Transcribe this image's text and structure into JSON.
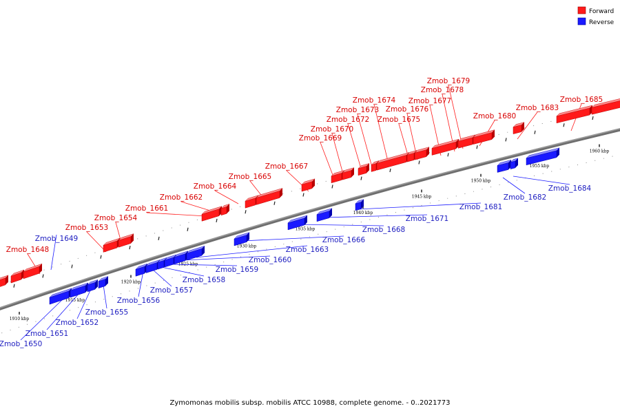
{
  "caption": "Zymomonas mobilis subsp. mobilis ATCC 10988, complete genome. - 0..2021773",
  "legend": [
    {
      "label": "Forward",
      "color": "#ff1a1a"
    },
    {
      "label": "Reverse",
      "color": "#1a1aff"
    }
  ],
  "colors": {
    "forward": "#ff1a1a",
    "forward_top": "#ff8a8a",
    "forward_dark": "#b80000",
    "forward_label": "#d80000",
    "reverse": "#1a1aff",
    "reverse_top": "#8a8aff",
    "reverse_dark": "#0000b0",
    "reverse_label": "#1c1cc0"
  },
  "scale": {
    "kbp_labels": [
      "1910 kbp",
      "1915 kbp",
      "1920 kbp",
      "1925 kbp",
      "1930 kbp",
      "1935 kbp",
      "1940 kbp",
      "1945 kbp",
      "1950 kbp",
      "1955 kbp",
      "1960 kbp"
    ]
  },
  "genes_forward": [
    {
      "label": "Zmob_1648"
    },
    {
      "label": "Zmob_1653"
    },
    {
      "label": "Zmob_1654"
    },
    {
      "label": "Zmob_1661"
    },
    {
      "label": "Zmob_1662"
    },
    {
      "label": "Zmob_1664"
    },
    {
      "label": "Zmob_1665"
    },
    {
      "label": "Zmob_1667"
    },
    {
      "label": "Zmob_1669"
    },
    {
      "label": "Zmob_1670"
    },
    {
      "label": "Zmob_1672"
    },
    {
      "label": "Zmob_1673"
    },
    {
      "label": "Zmob_1674"
    },
    {
      "label": "Zmob_1675"
    },
    {
      "label": "Zmob_1676"
    },
    {
      "label": "Zmob_1677"
    },
    {
      "label": "Zmob_1678"
    },
    {
      "label": "Zmob_1679"
    },
    {
      "label": "Zmob_1680"
    },
    {
      "label": "Zmob_1683"
    },
    {
      "label": "Zmob_1685"
    }
  ],
  "genes_reverse": [
    {
      "label": "Zmob_1649"
    },
    {
      "label": "Zmob_1650"
    },
    {
      "label": "Zmob_1651"
    },
    {
      "label": "Zmob_1652"
    },
    {
      "label": "Zmob_1655"
    },
    {
      "label": "Zmob_1656"
    },
    {
      "label": "Zmob_1657"
    },
    {
      "label": "Zmob_1658"
    },
    {
      "label": "Zmob_1659"
    },
    {
      "label": "Zmob_1660"
    },
    {
      "label": "Zmob_1663"
    },
    {
      "label": "Zmob_1666"
    },
    {
      "label": "Zmob_1668"
    },
    {
      "label": "Zmob_1671"
    },
    {
      "label": "Zmob_1681"
    },
    {
      "label": "Zmob_1682"
    },
    {
      "label": "Zmob_1684"
    }
  ]
}
